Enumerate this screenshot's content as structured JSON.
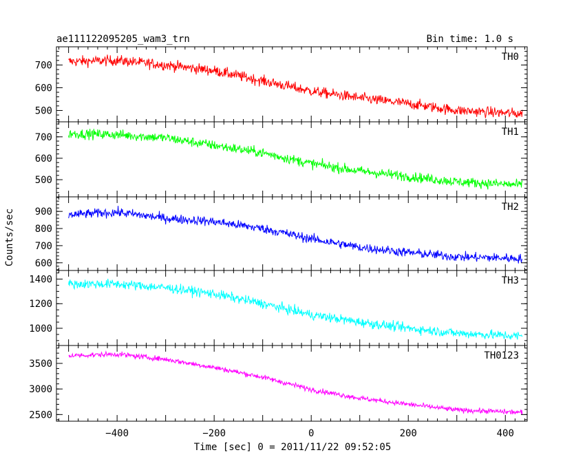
{
  "header": {
    "title": "ae111122095205_wam3_trn",
    "bin_time": "Bin time: 1.0 s"
  },
  "chart_data": {
    "type": "line",
    "xlabel": "Time [sec] 0 = 2011/11/22 09:52:05",
    "ylabel": "Counts/sec",
    "xlim": [
      -525,
      445
    ],
    "x_range": [
      -500,
      435
    ],
    "x_ticks": [
      -400,
      -200,
      0,
      200,
      400
    ],
    "x_minor_step": 20,
    "grid": false,
    "panels": [
      {
        "name": "TH0",
        "color": "#ff0000",
        "ylim": [
          450,
          780
        ],
        "y_ticks": [
          500,
          600,
          700
        ],
        "y_minor_step": 20,
        "trend": [
          [
            -500,
            715
          ],
          [
            -400,
            720
          ],
          [
            -300,
            700
          ],
          [
            -200,
            675
          ],
          [
            -100,
            630
          ],
          [
            0,
            585
          ],
          [
            100,
            555
          ],
          [
            200,
            530
          ],
          [
            300,
            500
          ],
          [
            435,
            485
          ]
        ],
        "noise": 30
      },
      {
        "name": "TH1",
        "color": "#00ff00",
        "ylim": [
          420,
          770
        ],
        "y_ticks": [
          500,
          600,
          700
        ],
        "y_minor_step": 20,
        "trend": [
          [
            -500,
            715
          ],
          [
            -400,
            710
          ],
          [
            -300,
            695
          ],
          [
            -200,
            660
          ],
          [
            -100,
            625
          ],
          [
            0,
            575
          ],
          [
            100,
            540
          ],
          [
            200,
            515
          ],
          [
            300,
            490
          ],
          [
            435,
            475
          ]
        ],
        "noise": 30
      },
      {
        "name": "TH2",
        "color": "#0000ff",
        "ylim": [
          555,
          985
        ],
        "y_ticks": [
          600,
          700,
          800,
          900
        ],
        "y_minor_step": 20,
        "trend": [
          [
            -500,
            880
          ],
          [
            -400,
            895
          ],
          [
            -300,
            860
          ],
          [
            -200,
            840
          ],
          [
            -100,
            800
          ],
          [
            0,
            740
          ],
          [
            100,
            690
          ],
          [
            200,
            660
          ],
          [
            300,
            635
          ],
          [
            435,
            625
          ]
        ],
        "noise": 35
      },
      {
        "name": "TH3",
        "color": "#00ffff",
        "ylim": [
          860,
          1470
        ],
        "y_ticks": [
          1000,
          1200,
          1400
        ],
        "y_minor_step": 50,
        "trend": [
          [
            -500,
            1360
          ],
          [
            -400,
            1360
          ],
          [
            -300,
            1330
          ],
          [
            -200,
            1280
          ],
          [
            -100,
            1200
          ],
          [
            0,
            1110
          ],
          [
            100,
            1050
          ],
          [
            200,
            1000
          ],
          [
            300,
            960
          ],
          [
            435,
            935
          ]
        ],
        "noise": 50
      },
      {
        "name": "TH0123",
        "color": "#ff00ff",
        "ylim": [
          2370,
          3850
        ],
        "y_ticks": [
          2500,
          3000,
          3500
        ],
        "y_minor_step": 100,
        "trend": [
          [
            -500,
            3650
          ],
          [
            -400,
            3680
          ],
          [
            -300,
            3580
          ],
          [
            -200,
            3420
          ],
          [
            -100,
            3230
          ],
          [
            0,
            2990
          ],
          [
            100,
            2820
          ],
          [
            200,
            2700
          ],
          [
            300,
            2590
          ],
          [
            435,
            2540
          ]
        ],
        "noise": 65
      }
    ]
  }
}
